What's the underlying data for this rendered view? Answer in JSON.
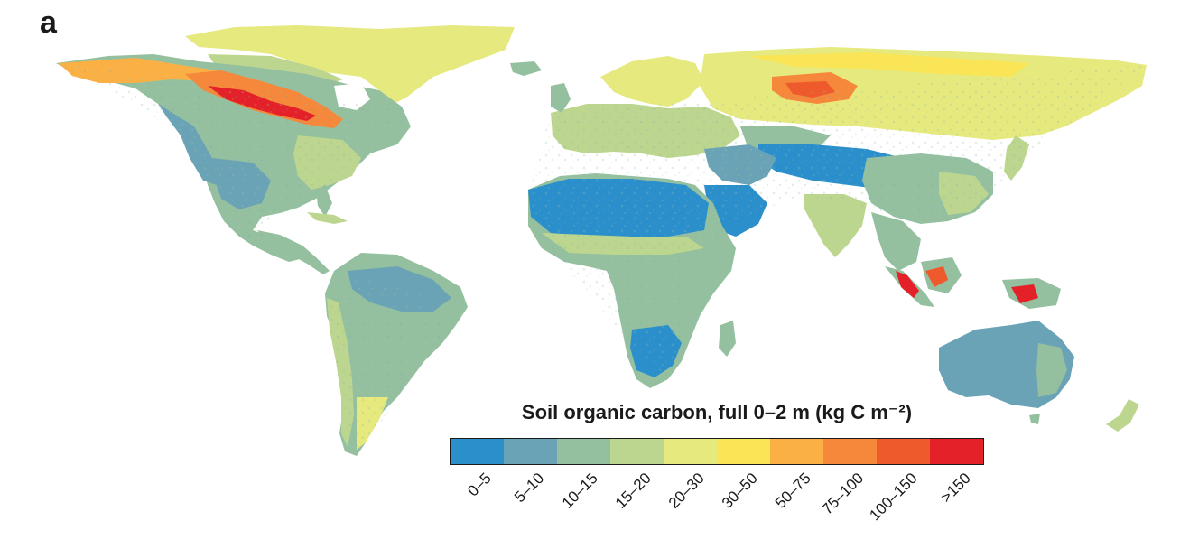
{
  "panel_label": "a",
  "legend": {
    "title": "Soil organic carbon, full 0–2 m (kg C m⁻²)",
    "classes": [
      {
        "label": "0–5",
        "color": "#2b8fcc"
      },
      {
        "label": "5–10",
        "color": "#6aa3b5"
      },
      {
        "label": "10–15",
        "color": "#94c0a0"
      },
      {
        "label": "15–20",
        "color": "#bdd68f"
      },
      {
        "label": "20–30",
        "color": "#e6e97e"
      },
      {
        "label": "30–50",
        "color": "#f9e555"
      },
      {
        "label": "50–75",
        "color": "#fbb045"
      },
      {
        "label": "75–100",
        "color": "#f5883a"
      },
      {
        "label": "100–150",
        "color": "#ee5a2c"
      },
      {
        "label": ">150",
        "color": "#e42128"
      }
    ]
  }
}
